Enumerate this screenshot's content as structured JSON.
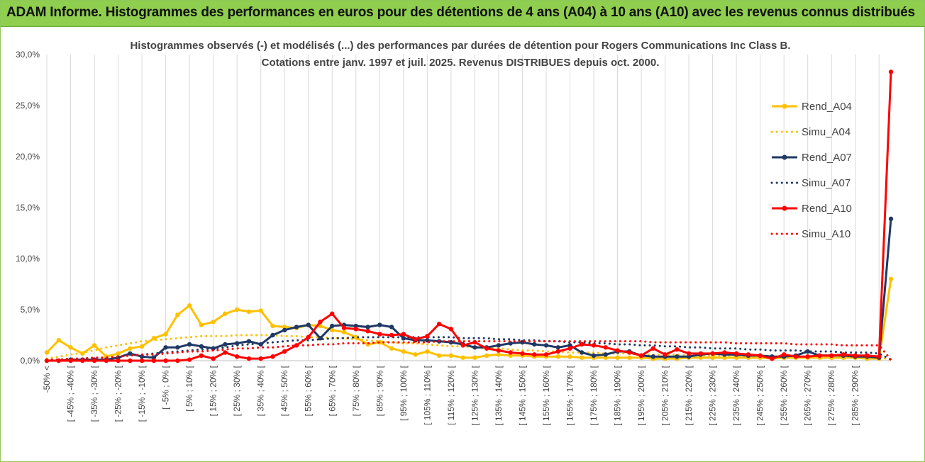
{
  "header": {
    "title": "ADAM Informe. Histogrammes des performances en euros pour des détentions de 4 ans (A04) à 10 ans (A10) avec les revenus connus distribués"
  },
  "chart_data": {
    "type": "line",
    "title": "Histogrammes observés (-) et modélisés (...) des performances par durées de détention pour Rogers Communications Inc Class B.",
    "subtitle": "Cotations entre janv. 1997 et juil. 2025. Revenus DISTRIBUES depuis oct. 2000.",
    "xlabel": "",
    "ylabel": "",
    "ylim": [
      0,
      30
    ],
    "y_ticks": [
      "0,0%",
      "5,0%",
      "10,0%",
      "15,0%",
      "20,0%",
      "25,0%",
      "30,0%"
    ],
    "grid": "vertical",
    "legend_position": "right",
    "x_tick_labels": [
      "-50% <",
      "[ -45% ; -40% [",
      "[ -35% ; -30% [",
      "[ -25% ; -20% [",
      "[ -15% ; -10% [",
      "[ -5% ; 0% [",
      "[ 5% ; 10% [",
      "[ 15% ; 20% [",
      "[ 25% ; 30% [",
      "[ 35% ; 40% [",
      "[ 45% ; 50% [",
      "[ 55% ; 60% [",
      "[ 65% ; 70% [",
      "[ 75% ; 80% [",
      "[ 85% ; 90% [",
      "[ 95% ; 100% [",
      "[ 105% ; 110% [",
      "[ 115% ; 120% [",
      "[ 125% ; 130% [",
      "[ 135% ; 140% [",
      "[ 145% ; 150% [",
      "[ 155% ; 160% [",
      "[ 165% ; 170% [",
      "[ 175% ; 180% [",
      "[ 185% ; 190% [",
      "[ 195% ; 200% [",
      "[ 205% ; 210% [",
      "[ 215% ; 220% [",
      "[ 225% ; 230% [",
      "[ 235% ; 240% [",
      "[ 245% ; 250% [",
      "[ 255% ; 260% [",
      "[ 265% ; 270% [",
      "[ 275% ; 280% [",
      "[ 285% ; 290% ["
    ],
    "series": [
      {
        "name": "Rend_A04",
        "style": "solid",
        "color": "#ffc000",
        "values": [
          0.8,
          2.0,
          1.3,
          0.7,
          1.5,
          0.4,
          0.7,
          1.2,
          1.4,
          2.2,
          2.6,
          4.5,
          5.4,
          3.5,
          3.8,
          4.6,
          5.0,
          4.8,
          4.9,
          3.4,
          3.3,
          3.2,
          3.5,
          3.4,
          3.0,
          2.8,
          2.3,
          1.6,
          1.8,
          1.2,
          0.9,
          0.6,
          0.9,
          0.5,
          0.5,
          0.3,
          0.3,
          0.5,
          0.6,
          0.5,
          0.5,
          0.4,
          0.4,
          0.4,
          0.4,
          0.3,
          0.3,
          0.3,
          0.3,
          0.3,
          0.3,
          0.2,
          0.2,
          0.2,
          0.3,
          0.3,
          0.3,
          0.3,
          0.3,
          0.3,
          0.3,
          0.2,
          0.3,
          0.3,
          0.3,
          0.3,
          0.3,
          0.3,
          0.3,
          0.2,
          0.2,
          8.0
        ]
      },
      {
        "name": "Simu_A04",
        "style": "dotted",
        "color": "#ffc000",
        "values": [
          0.2,
          0.4,
          0.6,
          0.8,
          1.0,
          1.3,
          1.5,
          1.7,
          1.9,
          2.0,
          2.1,
          2.2,
          2.3,
          2.4,
          2.4,
          2.4,
          2.5,
          2.5,
          2.5,
          2.5,
          2.4,
          2.4,
          2.3,
          2.3,
          2.2,
          2.2,
          2.1,
          2.0,
          1.9,
          1.8,
          1.7,
          1.7,
          1.6,
          1.5,
          1.4,
          1.4,
          1.3,
          1.2,
          1.2,
          1.1,
          1.0,
          1.0,
          0.9,
          0.9,
          0.8,
          0.8,
          0.8,
          0.7,
          0.7,
          0.7,
          0.6,
          0.6,
          0.6,
          0.6,
          0.5,
          0.5,
          0.5,
          0.5,
          0.5,
          0.4,
          0.4,
          0.4,
          0.4,
          0.4,
          0.4,
          0.3,
          0.3,
          0.3,
          0.3,
          0.3,
          0.3,
          0.1
        ]
      },
      {
        "name": "Rend_A07",
        "style": "solid",
        "color": "#1f3864",
        "values": [
          0.0,
          0.0,
          0.1,
          0.1,
          0.1,
          0.1,
          0.3,
          0.7,
          0.4,
          0.3,
          1.3,
          1.3,
          1.6,
          1.4,
          1.2,
          1.6,
          1.7,
          1.9,
          1.6,
          2.5,
          3.0,
          3.3,
          3.5,
          2.2,
          3.4,
          3.5,
          3.4,
          3.3,
          3.5,
          3.3,
          2.2,
          2.0,
          2.0,
          1.9,
          1.8,
          1.6,
          1.3,
          1.3,
          1.5,
          1.7,
          1.8,
          1.6,
          1.5,
          1.3,
          1.5,
          0.8,
          0.5,
          0.6,
          0.9,
          0.9,
          0.5,
          0.4,
          0.4,
          0.4,
          0.4,
          0.6,
          0.7,
          0.6,
          0.6,
          0.5,
          0.5,
          0.4,
          0.4,
          0.5,
          0.9,
          0.5,
          0.5,
          0.5,
          0.4,
          0.4,
          0.3,
          13.9
        ]
      },
      {
        "name": "Simu_A07",
        "style": "dotted",
        "color": "#1f3864",
        "values": [
          0.1,
          0.1,
          0.2,
          0.2,
          0.3,
          0.3,
          0.4,
          0.5,
          0.6,
          0.7,
          0.8,
          0.9,
          1.0,
          1.1,
          1.2,
          1.3,
          1.5,
          1.6,
          1.7,
          1.8,
          1.9,
          2.0,
          2.0,
          2.1,
          2.2,
          2.2,
          2.3,
          2.3,
          2.3,
          2.3,
          2.3,
          2.3,
          2.3,
          2.3,
          2.3,
          2.2,
          2.2,
          2.2,
          2.1,
          2.1,
          2.0,
          2.0,
          1.9,
          1.9,
          1.8,
          1.8,
          1.7,
          1.7,
          1.6,
          1.6,
          1.5,
          1.5,
          1.4,
          1.4,
          1.3,
          1.3,
          1.2,
          1.2,
          1.2,
          1.1,
          1.1,
          1.0,
          1.0,
          1.0,
          0.9,
          0.9,
          0.9,
          0.8,
          0.8,
          0.8,
          0.7,
          0.1
        ]
      },
      {
        "name": "Rend_A10",
        "style": "solid",
        "color": "#ff0000",
        "values": [
          0.0,
          0.0,
          0.0,
          0.0,
          0.0,
          0.0,
          0.0,
          0.0,
          0.0,
          0.0,
          0.0,
          0.0,
          0.1,
          0.5,
          0.2,
          0.8,
          0.4,
          0.2,
          0.2,
          0.4,
          0.9,
          1.5,
          2.3,
          3.8,
          4.6,
          3.2,
          3.1,
          2.9,
          2.6,
          2.5,
          2.6,
          2.1,
          2.4,
          3.6,
          3.1,
          1.5,
          1.8,
          1.2,
          1.0,
          0.8,
          0.7,
          0.6,
          0.6,
          0.9,
          1.2,
          1.6,
          1.5,
          1.3,
          1.0,
          0.8,
          0.5,
          1.2,
          0.6,
          1.1,
          0.7,
          0.7,
          0.7,
          0.8,
          0.7,
          0.6,
          0.5,
          0.2,
          0.6,
          0.4,
          0.4,
          0.5,
          0.5,
          0.6,
          0.5,
          0.5,
          0.4,
          28.3
        ]
      },
      {
        "name": "Simu_A10",
        "style": "dotted",
        "color": "#ff0000",
        "values": [
          0.1,
          0.1,
          0.2,
          0.2,
          0.3,
          0.3,
          0.4,
          0.5,
          0.6,
          0.6,
          0.7,
          0.8,
          0.9,
          0.9,
          1.0,
          1.1,
          1.2,
          1.2,
          1.3,
          1.3,
          1.4,
          1.5,
          1.5,
          1.6,
          1.6,
          1.7,
          1.7,
          1.7,
          1.8,
          1.8,
          1.8,
          1.8,
          1.8,
          1.9,
          1.9,
          1.9,
          1.9,
          1.9,
          1.9,
          1.9,
          1.9,
          1.9,
          1.9,
          1.9,
          1.9,
          1.9,
          1.9,
          1.9,
          1.9,
          1.9,
          1.9,
          1.8,
          1.8,
          1.8,
          1.8,
          1.8,
          1.8,
          1.8,
          1.7,
          1.7,
          1.7,
          1.7,
          1.7,
          1.6,
          1.6,
          1.6,
          1.6,
          1.5,
          1.5,
          1.5,
          1.5,
          0.1
        ]
      }
    ]
  }
}
